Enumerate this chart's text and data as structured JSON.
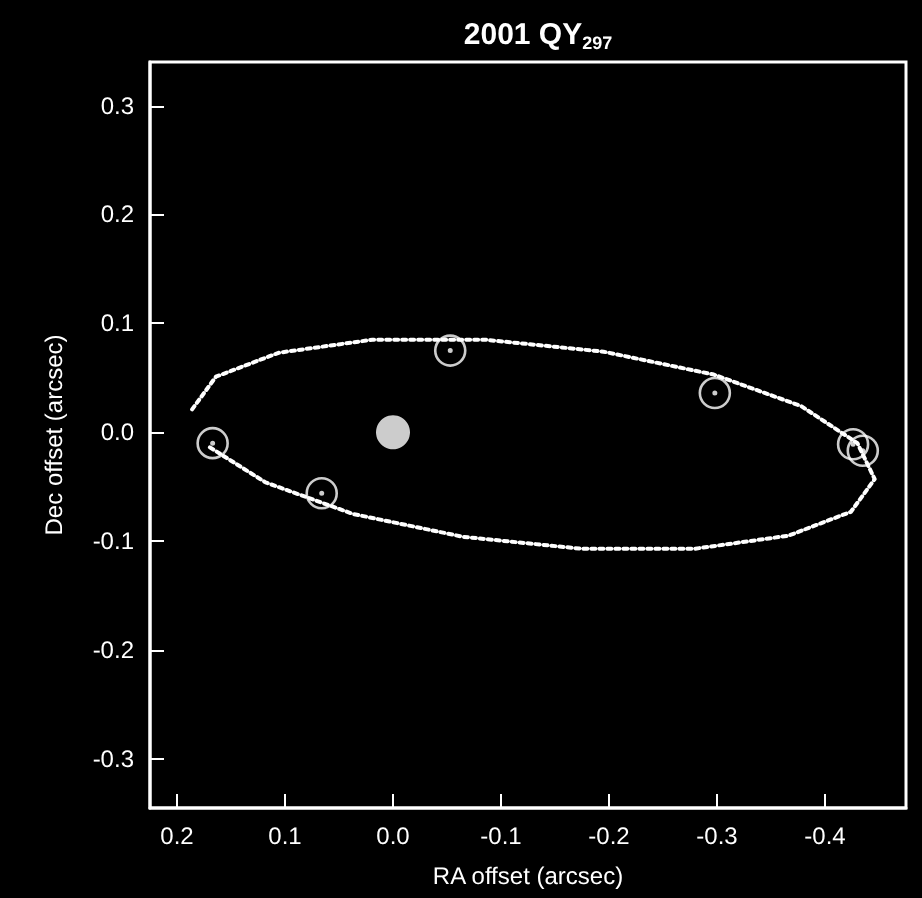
{
  "chart_data": {
    "type": "scatter",
    "title": "2001 QY$_{297}$",
    "xlabel": "RA offset (arcsec)",
    "ylabel": "Dec offset (arcsec)",
    "xlim": [
      0.225,
      -0.475
    ],
    "ylim": [
      -0.345,
      0.34
    ],
    "xticks": [
      0.2,
      0.1,
      {
        "value": 0,
        "label": "0.0"
      },
      -0.1,
      -0.2,
      -0.3,
      -0.4
    ],
    "yticks": [
      -0.3,
      -0.2,
      -0.1,
      {
        "value": 0,
        "label": "0.0"
      },
      0.1,
      0.2,
      0.3
    ],
    "grid": false,
    "series": [
      {
        "type": "line",
        "line_style": "dotted",
        "marker": "none",
        "color": "#ffffff",
        "x": [
          0.186,
          0.164,
          0.106,
          0.019,
          -0.085,
          -0.195,
          -0.297,
          -0.378,
          -0.43,
          -0.446,
          -0.424,
          -0.366,
          -0.279,
          -0.175,
          -0.065,
          0.037,
          0.118,
          0.171
        ],
        "values": [
          0.021,
          0.051,
          0.073,
          0.085,
          0.085,
          0.074,
          0.053,
          0.024,
          -0.01,
          -0.043,
          -0.073,
          -0.095,
          -0.107,
          -0.107,
          -0.096,
          -0.075,
          -0.046,
          -0.013
        ]
      },
      {
        "marker": "circle",
        "color": "#ffffff",
        "x": [
          0.167,
          0.066,
          -0.053,
          -0.298,
          -0.426,
          -0.435
        ],
        "values": [
          -0.01,
          -0.056,
          0.075,
          0.036,
          -0.011,
          -0.017
        ]
      },
      {
        "type": "bubble",
        "color": "#ffffff",
        "x": [
          0.0
        ],
        "values": [
          0.0
        ],
        "sizes": [
          1
        ]
      }
    ]
  }
}
